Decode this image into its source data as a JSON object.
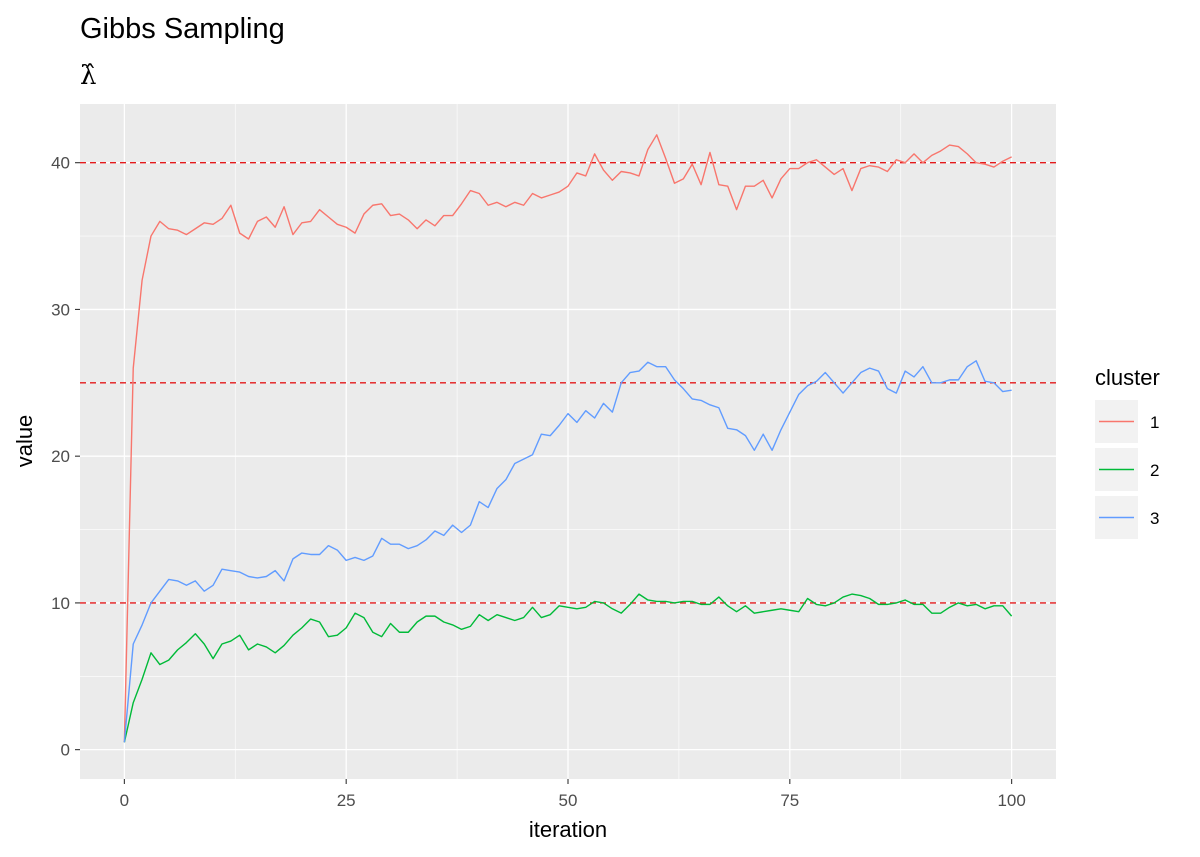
{
  "chart_data": {
    "type": "line",
    "title": "Gibbs Sampling",
    "subtitle": "λ̂",
    "xlabel": "iteration",
    "ylabel": "value",
    "xlim": [
      -5,
      105
    ],
    "ylim": [
      -2,
      44
    ],
    "x_ticks": [
      0,
      25,
      50,
      75,
      100
    ],
    "y_ticks": [
      0,
      10,
      20,
      30,
      40
    ],
    "grid": true,
    "legend": {
      "title": "cluster",
      "position": "right"
    },
    "reference_lines": {
      "y": [
        10,
        25,
        40
      ],
      "color": "#e41a1c",
      "style": "dashed"
    },
    "series": [
      {
        "name": "1",
        "color": "#F8766D",
        "values": [
          0.5,
          26.0,
          32.0,
          35.0,
          36.0,
          35.5,
          35.4,
          35.1,
          35.5,
          35.9,
          35.8,
          36.2,
          37.1,
          35.2,
          34.8,
          36.0,
          36.3,
          35.6,
          37.0,
          35.1,
          35.9,
          36.0,
          36.8,
          36.3,
          35.8,
          35.6,
          35.2,
          36.5,
          37.1,
          37.2,
          36.4,
          36.5,
          36.1,
          35.5,
          36.1,
          35.7,
          36.4,
          36.4,
          37.2,
          38.1,
          37.9,
          37.1,
          37.3,
          37.0,
          37.3,
          37.1,
          37.9,
          37.6,
          37.8,
          38.0,
          38.4,
          39.3,
          39.1,
          40.6,
          39.5,
          38.8,
          39.4,
          39.3,
          39.1,
          40.9,
          41.9,
          40.3,
          38.6,
          38.9,
          39.9,
          38.5,
          40.7,
          38.5,
          38.4,
          36.8,
          38.4,
          38.4,
          38.8,
          37.6,
          38.9,
          39.6,
          39.6,
          40.0,
          40.2,
          39.7,
          39.2,
          39.6,
          38.1,
          39.6,
          39.8,
          39.7,
          39.4,
          40.2,
          40.0,
          40.6,
          40.0,
          40.5,
          40.8,
          41.2,
          41.1,
          40.6,
          40.0,
          39.9,
          39.7,
          40.1,
          40.4
        ]
      },
      {
        "name": "2",
        "color": "#00BA38",
        "values": [
          0.5,
          3.2,
          4.8,
          6.6,
          5.8,
          6.1,
          6.8,
          7.3,
          7.9,
          7.2,
          6.2,
          7.2,
          7.4,
          7.8,
          6.8,
          7.2,
          7.0,
          6.6,
          7.1,
          7.8,
          8.3,
          8.9,
          8.7,
          7.7,
          7.8,
          8.3,
          9.3,
          9.0,
          8.0,
          7.7,
          8.6,
          8.0,
          8.0,
          8.7,
          9.1,
          9.1,
          8.7,
          8.5,
          8.2,
          8.4,
          9.2,
          8.8,
          9.2,
          9.0,
          8.8,
          9.0,
          9.7,
          9.0,
          9.2,
          9.8,
          9.7,
          9.6,
          9.7,
          10.1,
          10.0,
          9.6,
          9.3,
          9.9,
          10.6,
          10.2,
          10.1,
          10.1,
          10.0,
          10.1,
          10.1,
          9.9,
          9.9,
          10.4,
          9.8,
          9.4,
          9.8,
          9.3,
          9.4,
          9.5,
          9.6,
          9.5,
          9.4,
          10.3,
          9.9,
          9.8,
          10.0,
          10.4,
          10.6,
          10.5,
          10.3,
          9.9,
          9.9,
          10.0,
          10.2,
          9.9,
          9.9,
          9.3,
          9.3,
          9.7,
          10.0,
          9.8,
          9.9,
          9.6,
          9.8,
          9.8,
          9.1
        ]
      },
      {
        "name": "3",
        "color": "#619CFF",
        "values": [
          0.5,
          7.2,
          8.5,
          10.0,
          10.8,
          11.6,
          11.5,
          11.2,
          11.5,
          10.8,
          11.2,
          12.3,
          12.2,
          12.1,
          11.8,
          11.7,
          11.8,
          12.2,
          11.5,
          13.0,
          13.4,
          13.3,
          13.3,
          13.9,
          13.6,
          12.9,
          13.1,
          12.9,
          13.2,
          14.4,
          14.0,
          14.0,
          13.7,
          13.9,
          14.3,
          14.9,
          14.6,
          15.3,
          14.8,
          15.3,
          16.9,
          16.5,
          17.8,
          18.4,
          19.5,
          19.8,
          20.1,
          21.5,
          21.4,
          22.1,
          22.9,
          22.3,
          23.1,
          22.6,
          23.6,
          23.0,
          25.0,
          25.7,
          25.8,
          26.4,
          26.1,
          26.1,
          25.2,
          24.6,
          23.9,
          23.8,
          23.5,
          23.3,
          21.9,
          21.8,
          21.4,
          20.4,
          21.5,
          20.4,
          21.8,
          23.0,
          24.2,
          24.8,
          25.1,
          25.7,
          25.0,
          24.3,
          25.0,
          25.7,
          26.0,
          25.8,
          24.6,
          24.3,
          25.8,
          25.4,
          26.1,
          25.0,
          25.0,
          25.2,
          25.2,
          26.1,
          26.5,
          25.1,
          25.0,
          24.4,
          24.5
        ]
      }
    ]
  }
}
